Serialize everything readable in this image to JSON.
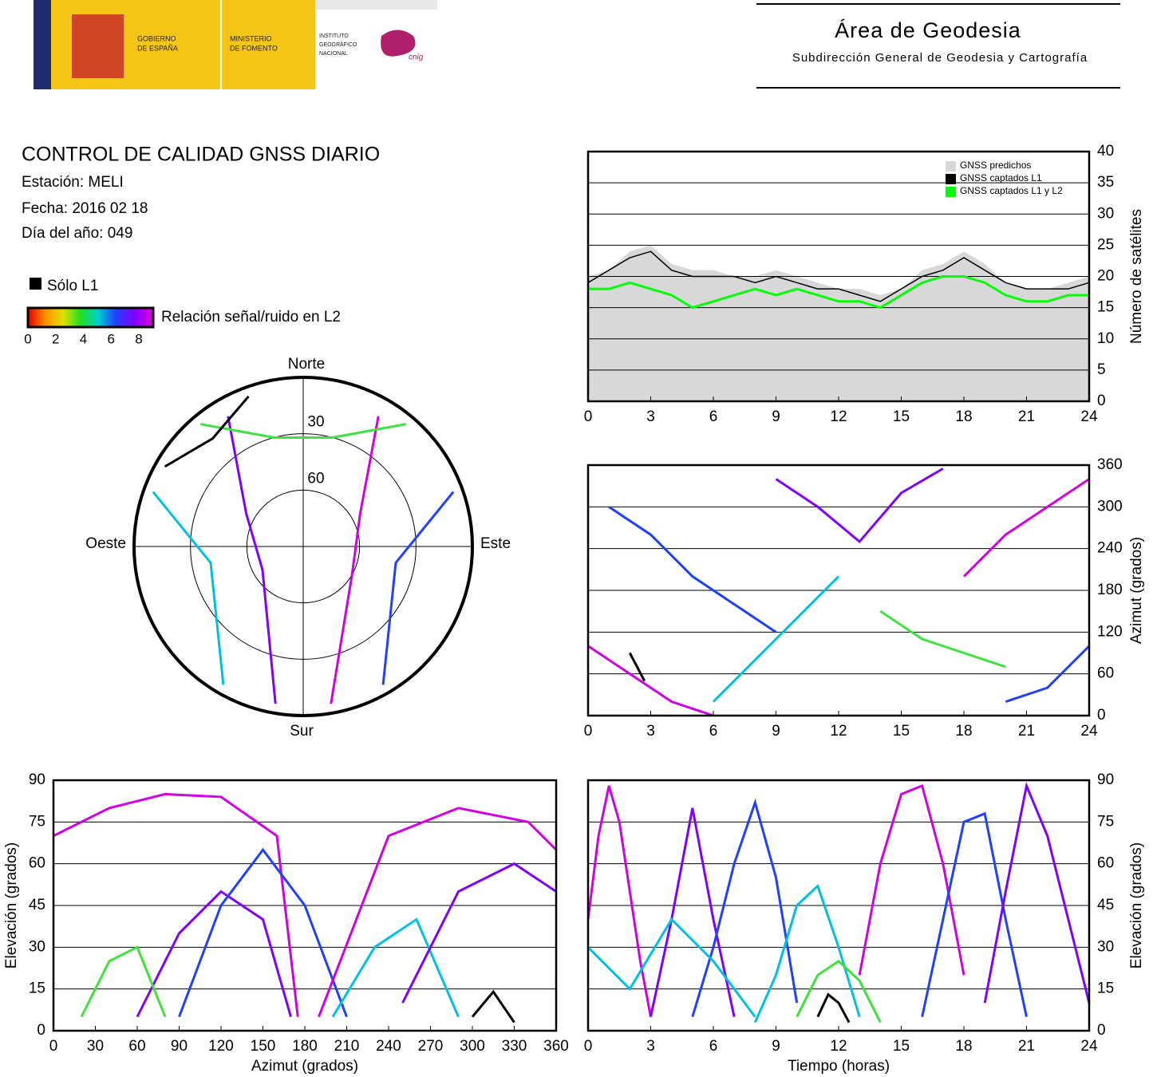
{
  "header": {
    "logo_gobierno": [
      "GOBIERNO",
      "DE ESPAÑA"
    ],
    "logo_ministerio": [
      "MINISTERIO",
      "DE FOMENTO"
    ],
    "logo_instituto": [
      "INSTITUTO",
      "GEOGRÁFICO",
      "NACIONAL"
    ],
    "logo_cnig": "cnig",
    "title": "Área de Geodesia",
    "subtitle": "Subdirección General de Geodesia y Cartografía"
  },
  "info": {
    "title": "CONTROL DE CALIDAD GNSS DIARIO",
    "station": "Estación: MELI",
    "date": "Fecha: 2016 02 18",
    "doy": "Día del año: 049",
    "legend_l1": "Sólo L1",
    "colorbar_label": "Relación señal/ruido en L2",
    "colorbar_ticks": [
      0,
      2,
      4,
      6,
      8
    ]
  },
  "chart_data": [
    {
      "type": "polar",
      "labels": {
        "north": "Norte",
        "south": "Sur",
        "east": "Este",
        "west": "Oeste"
      },
      "rings": [
        30,
        60
      ],
      "ylim": [
        0,
        90
      ],
      "tracks": [
        {
          "color": "#d000e0",
          "x": [
            170,
            120,
            60,
            30
          ],
          "y": [
            5,
            60,
            55,
            10
          ]
        },
        {
          "color": "#8000ff",
          "x": [
            190,
            240,
            300,
            330
          ],
          "y": [
            5,
            65,
            55,
            10
          ]
        },
        {
          "color": "#2040ff",
          "x": [
            150,
            100,
            70
          ],
          "y": [
            5,
            40,
            5
          ]
        },
        {
          "color": "#00c0e0",
          "x": [
            210,
            260,
            290
          ],
          "y": [
            5,
            40,
            5
          ]
        },
        {
          "color": "#40e040",
          "x": [
            320,
            345,
            15,
            40
          ],
          "y": [
            5,
            30,
            30,
            5
          ]
        },
        {
          "color": "#000000",
          "x": [
            300,
            320,
            340
          ],
          "y": [
            5,
            15,
            5
          ]
        }
      ]
    },
    {
      "type": "line",
      "ylabel": "Número de satélites",
      "x": [
        0,
        1,
        2,
        3,
        4,
        5,
        6,
        7,
        8,
        9,
        10,
        11,
        12,
        13,
        14,
        15,
        16,
        17,
        18,
        19,
        20,
        21,
        22,
        23,
        24
      ],
      "series": [
        {
          "name": "GNSS predichos",
          "color": "#d8d8d8",
          "fill": true,
          "values": [
            20,
            21,
            24,
            25,
            22,
            21,
            21,
            20,
            20,
            21,
            20,
            19,
            18,
            18,
            17,
            18,
            21,
            22,
            24,
            22,
            19,
            18,
            18,
            19,
            20
          ]
        },
        {
          "name": "GNSS captados L1",
          "color": "#000000",
          "values": [
            19,
            21,
            23,
            24,
            21,
            20,
            20,
            20,
            19,
            20,
            19,
            18,
            18,
            17,
            16,
            18,
            20,
            21,
            23,
            21,
            19,
            18,
            18,
            18,
            19
          ]
        },
        {
          "name": "GNSS captados L1 y L2",
          "color": "#00ff00",
          "values": [
            18,
            18,
            19,
            18,
            17,
            15,
            16,
            17,
            18,
            17,
            18,
            17,
            16,
            16,
            15,
            17,
            19,
            20,
            20,
            19,
            17,
            16,
            16,
            17,
            17
          ]
        }
      ],
      "xlim": [
        0,
        24
      ],
      "xticks": [
        0,
        3,
        6,
        9,
        12,
        15,
        18,
        21,
        24
      ],
      "ylim": [
        0,
        40
      ],
      "yticks": [
        0,
        5,
        10,
        15,
        20,
        25,
        30,
        35,
        40
      ],
      "grid": true,
      "legend": "top-right",
      "y_axis_side": "right"
    },
    {
      "type": "line",
      "ylabel": "Azimut (grados)",
      "tracks": [
        {
          "color": "#d000e0",
          "x": [
            0,
            2,
            4,
            6
          ],
          "y": [
            100,
            60,
            20,
            0
          ]
        },
        {
          "color": "#2040ff",
          "x": [
            1,
            3,
            5,
            7,
            9
          ],
          "y": [
            300,
            260,
            200,
            160,
            120
          ]
        },
        {
          "color": "#00c0e0",
          "x": [
            6,
            8,
            10,
            12
          ],
          "y": [
            20,
            80,
            140,
            200
          ]
        },
        {
          "color": "#8000ff",
          "x": [
            9,
            11,
            13,
            15,
            17
          ],
          "y": [
            340,
            300,
            250,
            320,
            355
          ]
        },
        {
          "color": "#40e040",
          "x": [
            14,
            16,
            18,
            20
          ],
          "y": [
            150,
            110,
            90,
            70
          ]
        },
        {
          "color": "#d000e0",
          "x": [
            18,
            20,
            22,
            24
          ],
          "y": [
            200,
            260,
            300,
            340
          ]
        },
        {
          "color": "#2040ff",
          "x": [
            20,
            22,
            24
          ],
          "y": [
            20,
            40,
            100
          ]
        },
        {
          "color": "#000000",
          "x": [
            2,
            2.7
          ],
          "y": [
            90,
            50
          ]
        }
      ],
      "xlim": [
        0,
        24
      ],
      "xticks": [
        0,
        3,
        6,
        9,
        12,
        15,
        18,
        21,
        24
      ],
      "ylim": [
        0,
        360
      ],
      "yticks": [
        0,
        60,
        120,
        180,
        240,
        300,
        360
      ],
      "grid": true,
      "y_axis_side": "right"
    },
    {
      "type": "line",
      "xlabel": "Azimut (grados)",
      "ylabel": "Elevación (grados)",
      "tracks": [
        {
          "color": "#d000e0",
          "x": [
            0,
            40,
            80,
            120,
            160,
            175
          ],
          "y": [
            70,
            80,
            85,
            84,
            70,
            5
          ]
        },
        {
          "color": "#8000ff",
          "x": [
            60,
            90,
            120,
            150,
            170
          ],
          "y": [
            5,
            35,
            50,
            40,
            5
          ]
        },
        {
          "color": "#2040ff",
          "x": [
            90,
            120,
            150,
            180,
            210
          ],
          "y": [
            5,
            45,
            65,
            45,
            5
          ]
        },
        {
          "color": "#00c0e0",
          "x": [
            200,
            230,
            260,
            290
          ],
          "y": [
            5,
            30,
            40,
            5
          ]
        },
        {
          "color": "#40e040",
          "x": [
            20,
            40,
            60,
            80
          ],
          "y": [
            5,
            25,
            30,
            5
          ]
        },
        {
          "color": "#d000e0",
          "x": [
            190,
            240,
            290,
            340,
            360
          ],
          "y": [
            5,
            70,
            80,
            75,
            65
          ]
        },
        {
          "color": "#000000",
          "x": [
            300,
            315,
            330
          ],
          "y": [
            5,
            14,
            3
          ]
        },
        {
          "color": "#8000ff",
          "x": [
            250,
            290,
            330,
            360
          ],
          "y": [
            10,
            50,
            60,
            50
          ]
        }
      ],
      "xlim": [
        0,
        360
      ],
      "xticks": [
        0,
        30,
        60,
        90,
        120,
        150,
        180,
        210,
        240,
        270,
        300,
        330,
        360
      ],
      "ylim": [
        0,
        90
      ],
      "yticks": [
        0,
        15,
        30,
        45,
        60,
        75,
        90
      ],
      "grid": true,
      "y_axis_side": "left"
    },
    {
      "type": "line",
      "xlabel": "Tiempo (horas)",
      "ylabel": "Elevación (grados)",
      "tracks": [
        {
          "color": "#d000e0",
          "x": [
            0,
            0.5,
            1,
            1.5,
            2,
            2.5,
            3
          ],
          "y": [
            40,
            70,
            88,
            75,
            50,
            25,
            5
          ]
        },
        {
          "color": "#8000ff",
          "x": [
            3,
            4,
            5,
            6,
            7
          ],
          "y": [
            5,
            40,
            80,
            40,
            5
          ]
        },
        {
          "color": "#2040ff",
          "x": [
            5,
            6,
            7,
            8,
            9,
            10
          ],
          "y": [
            5,
            30,
            60,
            82,
            55,
            10
          ]
        },
        {
          "color": "#00c0e0",
          "x": [
            8,
            9,
            10,
            11,
            12,
            13
          ],
          "y": [
            3,
            20,
            45,
            52,
            30,
            5
          ]
        },
        {
          "color": "#40e040",
          "x": [
            10,
            11,
            12,
            13,
            14
          ],
          "y": [
            5,
            20,
            25,
            18,
            3
          ]
        },
        {
          "color": "#d000e0",
          "x": [
            13,
            14,
            15,
            16,
            17,
            18
          ],
          "y": [
            20,
            60,
            85,
            88,
            60,
            20
          ]
        },
        {
          "color": "#2040ff",
          "x": [
            16,
            17,
            18,
            19,
            20,
            21
          ],
          "y": [
            5,
            40,
            75,
            78,
            40,
            5
          ]
        },
        {
          "color": "#8000ff",
          "x": [
            19,
            20,
            21,
            22,
            23,
            24
          ],
          "y": [
            10,
            50,
            88,
            70,
            40,
            10
          ]
        },
        {
          "color": "#00c0e0",
          "x": [
            0,
            2,
            4,
            6,
            8
          ],
          "y": [
            30,
            15,
            40,
            25,
            5
          ]
        },
        {
          "color": "#000000",
          "x": [
            11,
            11.5,
            12,
            12.5
          ],
          "y": [
            5,
            13,
            10,
            3
          ]
        }
      ],
      "xlim": [
        0,
        24
      ],
      "xticks": [
        0,
        3,
        6,
        9,
        12,
        15,
        18,
        21,
        24
      ],
      "ylim": [
        0,
        90
      ],
      "yticks": [
        0,
        15,
        30,
        45,
        60,
        75,
        90
      ],
      "grid": true,
      "y_axis_side": "right"
    }
  ]
}
